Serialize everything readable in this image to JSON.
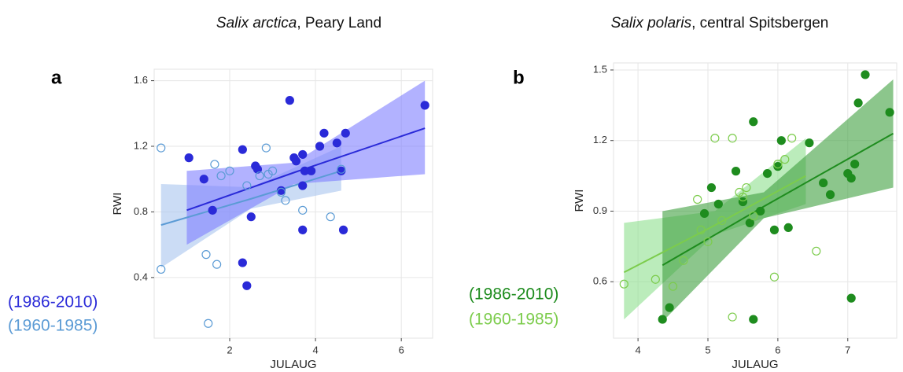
{
  "chart_data": [
    {
      "type": "scatter",
      "panel_label": "a",
      "title": {
        "species": "Salix arctica",
        "place": ", Peary Land"
      },
      "x_label": "JULAUG",
      "y_label": "RWI",
      "xlim": [
        0.24,
        6.73
      ],
      "ylim": [
        0.03,
        1.67
      ],
      "xticks": [
        2,
        4,
        6
      ],
      "yticks": [
        0.4,
        0.8,
        1.2,
        1.6
      ],
      "grid": true,
      "series": [
        {
          "name": "(1986-2010)",
          "color": "#2a2ad8",
          "filled": true,
          "band_color": "#7f7fff",
          "x": [
            1.05,
            1.4,
            1.6,
            2.3,
            2.3,
            2.4,
            2.5,
            2.6,
            2.65,
            3.2,
            3.4,
            3.5,
            3.55,
            3.7,
            3.7,
            3.7,
            3.75,
            3.9,
            4.1,
            4.2,
            4.5,
            4.6,
            4.65,
            4.7,
            6.55
          ],
          "values": [
            1.13,
            1.0,
            0.81,
            1.18,
            0.49,
            0.35,
            0.77,
            1.08,
            1.06,
            0.93,
            1.48,
            1.13,
            1.11,
            1.15,
            0.96,
            0.69,
            1.05,
            1.05,
            1.2,
            1.28,
            1.22,
            1.05,
            0.69,
            1.28,
            1.45
          ],
          "fit": {
            "x": [
              1,
              3.5,
              6.55
            ],
            "y": [
              0.81,
              1.04,
              1.31
            ],
            "lower": [
              0.6,
              0.97,
              1.03
            ],
            "upper": [
              1.05,
              1.1,
              1.6
            ]
          }
        },
        {
          "name": "(1960-1985)",
          "color": "#5b9bd5",
          "filled": false,
          "band_color": "#a9c4ee",
          "x": [
            0.4,
            0.4,
            1.45,
            1.5,
            1.65,
            1.7,
            1.8,
            2.0,
            2.4,
            2.7,
            2.85,
            2.9,
            3.0,
            3.2,
            3.3,
            3.7,
            4.35,
            4.6
          ],
          "values": [
            1.19,
            0.45,
            0.54,
            0.12,
            1.09,
            0.48,
            1.02,
            1.05,
            0.96,
            1.02,
            1.19,
            1.03,
            1.05,
            0.92,
            0.87,
            0.81,
            0.77,
            1.06
          ],
          "fit": {
            "x": [
              0.4,
              2.5,
              4.6
            ],
            "y": [
              0.72,
              0.88,
              1.05
            ],
            "lower": [
              0.46,
              0.82,
              0.93
            ],
            "upper": [
              0.97,
              0.95,
              1.2
            ]
          }
        }
      ]
    },
    {
      "type": "scatter",
      "panel_label": "b",
      "title": {
        "species": "Salix polaris",
        "place": ", central Spitsbergen"
      },
      "x_label": "JULAUG",
      "y_label": "RWI",
      "xlim": [
        3.65,
        7.7
      ],
      "ylim": [
        0.36,
        1.53
      ],
      "xticks": [
        4,
        5,
        6,
        7
      ],
      "yticks": [
        0.6,
        0.9,
        1.2,
        1.5
      ],
      "grid": true,
      "series": [
        {
          "name": "(1986-2010)",
          "color": "#1e8c1e",
          "filled": true,
          "band_color": "#3fa03f",
          "x": [
            4.35,
            4.45,
            4.95,
            5.05,
            5.15,
            5.4,
            5.5,
            5.6,
            5.65,
            5.65,
            5.75,
            5.85,
            5.95,
            6.0,
            6.05,
            6.15,
            6.45,
            6.65,
            6.75,
            7.0,
            7.05,
            7.05,
            7.1,
            7.15,
            7.25,
            7.6
          ],
          "values": [
            0.44,
            0.49,
            0.89,
            1.0,
            0.93,
            1.07,
            0.94,
            0.85,
            1.28,
            0.44,
            0.9,
            1.06,
            0.82,
            1.09,
            1.2,
            0.83,
            1.19,
            1.02,
            0.97,
            1.06,
            1.04,
            0.53,
            1.1,
            1.36,
            1.48,
            1.32
          ],
          "fit": {
            "x": [
              4.35,
              5.8,
              7.65
            ],
            "y": [
              0.67,
              0.92,
              1.23
            ],
            "lower": [
              0.43,
              0.87,
              1.0
            ],
            "upper": [
              0.9,
              0.98,
              1.46
            ]
          }
        },
        {
          "name": "(1960-1985)",
          "color": "#7ccc4c",
          "filled": false,
          "band_color": "#8ee08e",
          "x": [
            3.8,
            4.25,
            4.5,
            4.65,
            4.85,
            4.9,
            5.0,
            5.1,
            5.2,
            5.35,
            5.35,
            5.45,
            5.5,
            5.55,
            5.65,
            5.95,
            6.0,
            6.1,
            6.2,
            6.55
          ],
          "values": [
            0.59,
            0.61,
            0.58,
            0.69,
            0.95,
            0.82,
            0.77,
            1.21,
            0.86,
            1.21,
            0.45,
            0.98,
            0.96,
            1.0,
            0.88,
            0.62,
            1.1,
            1.12,
            1.21,
            0.73
          ],
          "fit": {
            "x": [
              3.8,
              5.1,
              6.4
            ],
            "y": [
              0.64,
              0.84,
              1.05
            ],
            "lower": [
              0.44,
              0.8,
              0.93
            ],
            "upper": [
              0.85,
              0.9,
              1.21
            ]
          }
        }
      ]
    }
  ]
}
